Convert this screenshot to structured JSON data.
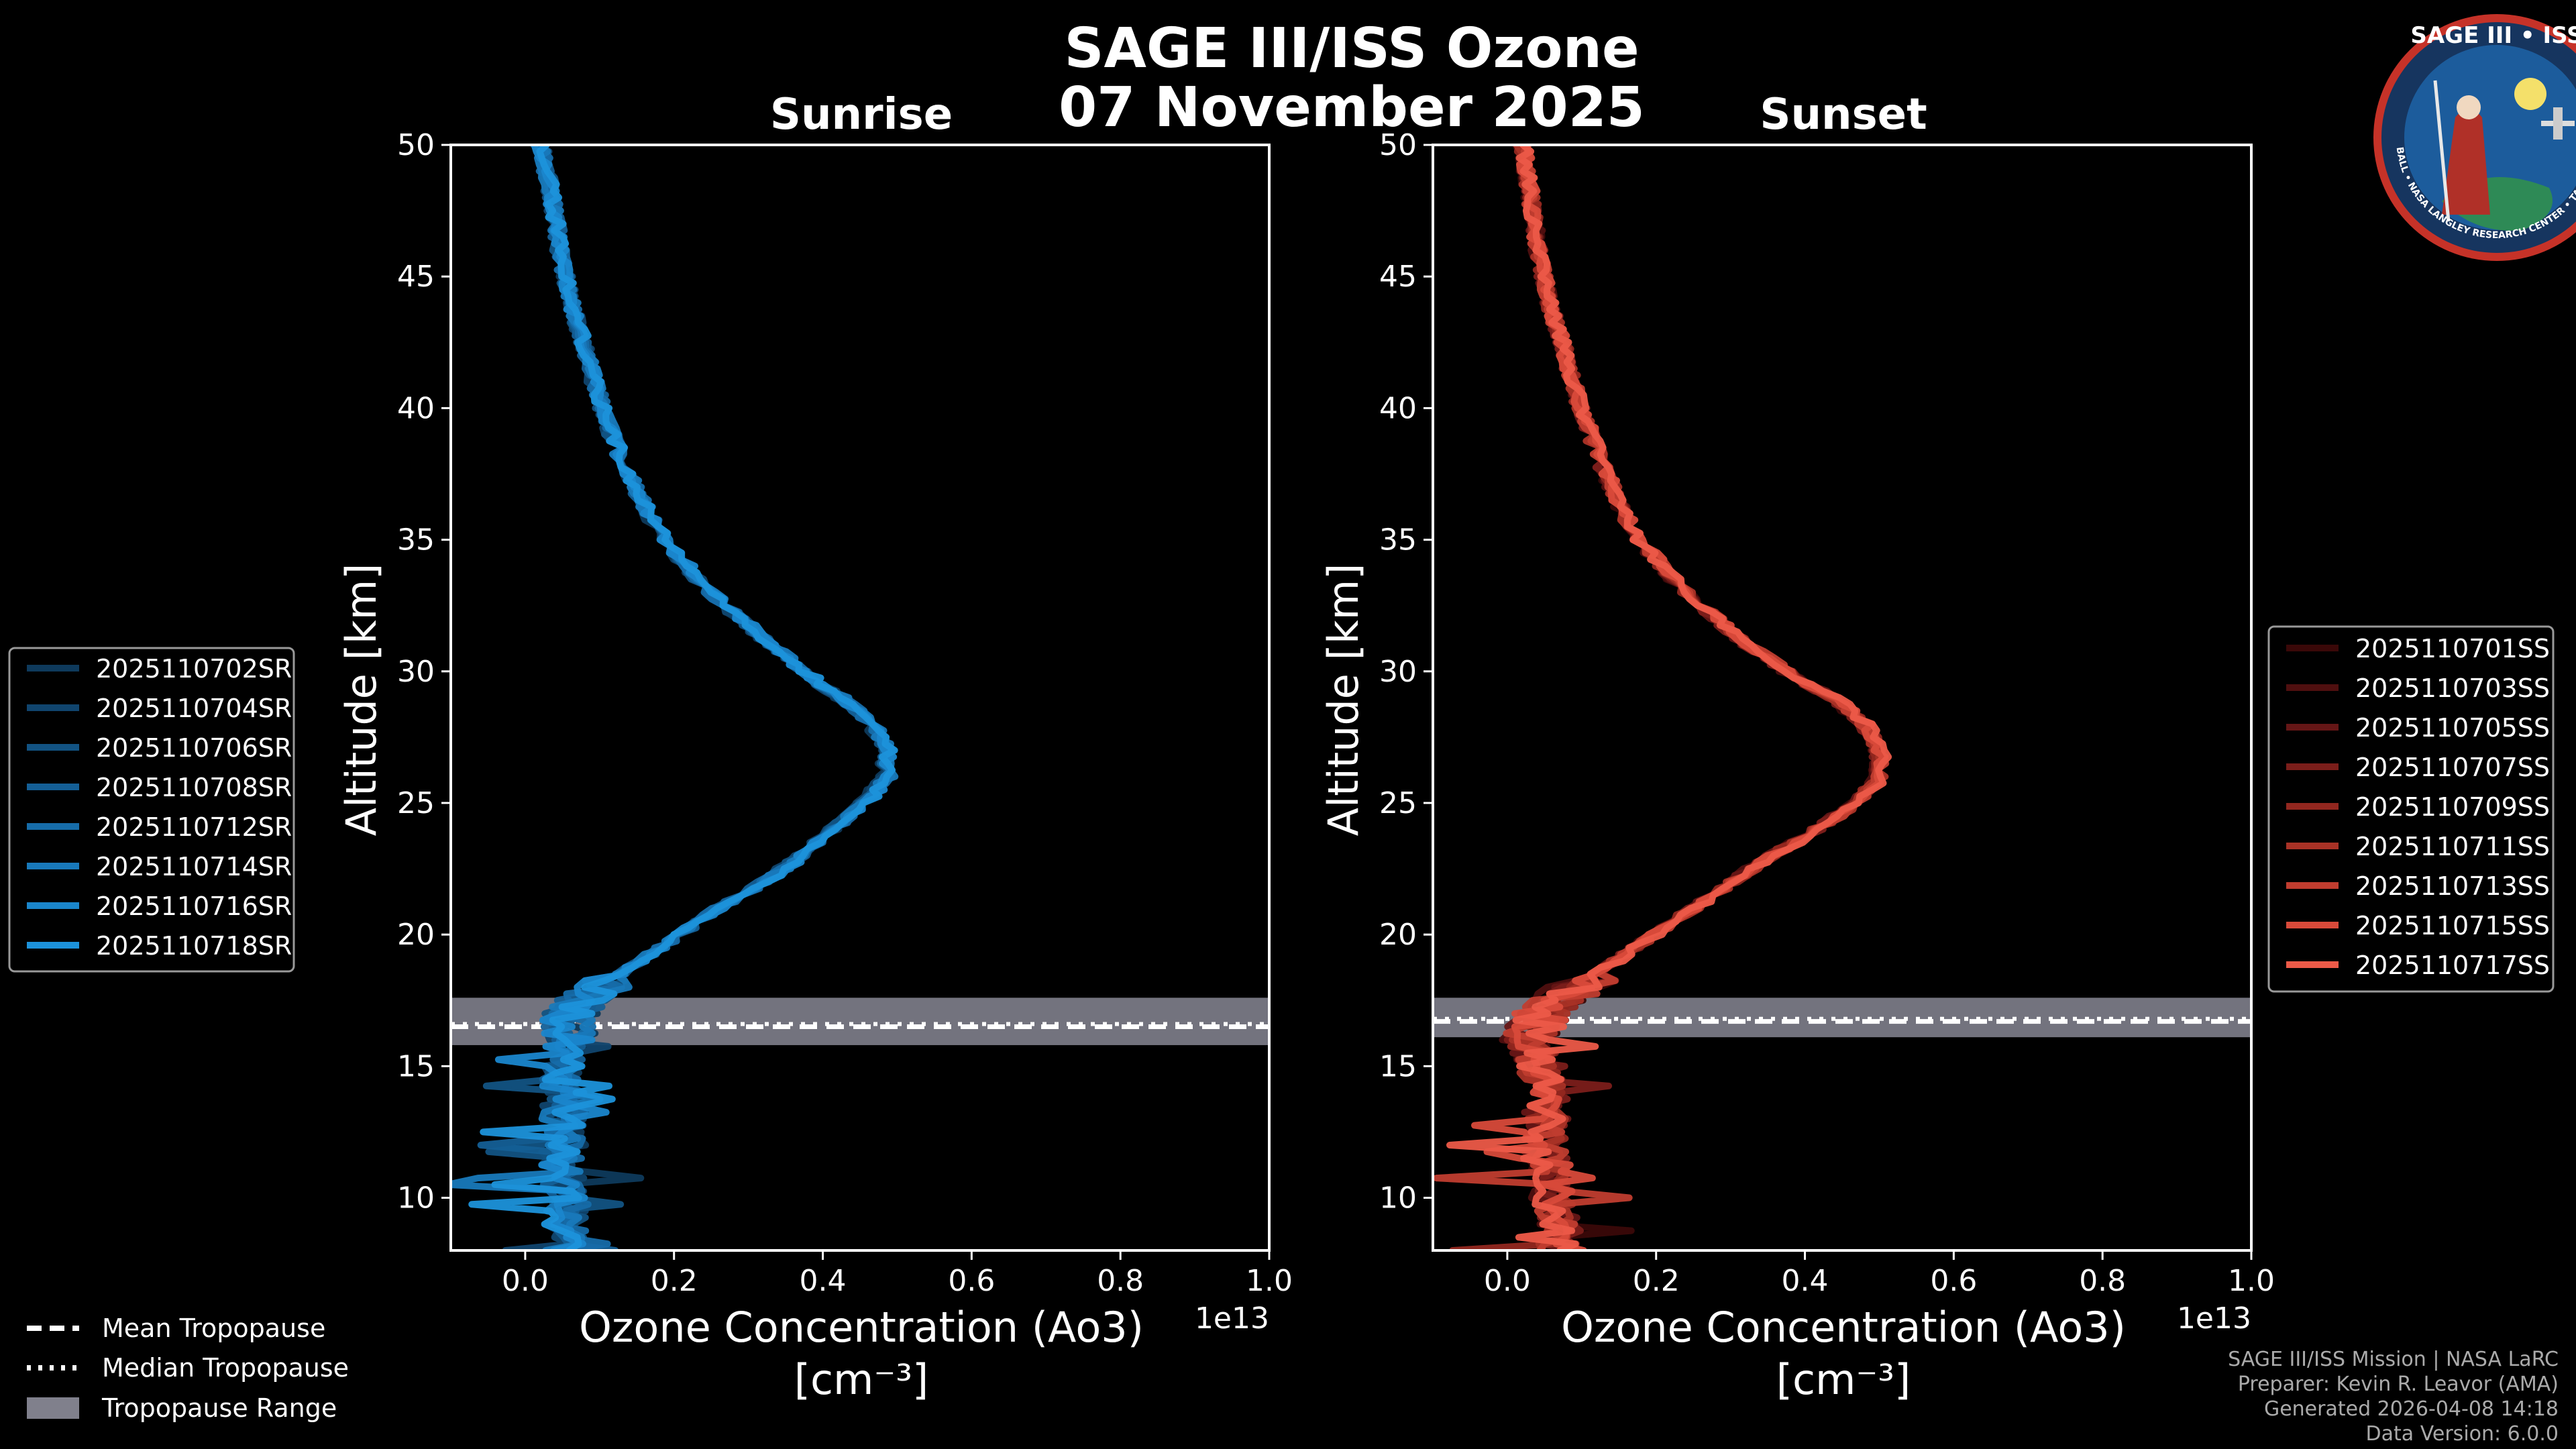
{
  "title": {
    "line1": "SAGE III/ISS Ozone",
    "line2": "07 November 2025"
  },
  "colors": {
    "sunrise_base": "#1a90d0",
    "sunset_base": "#e8574a",
    "tropopause_band": "#80808c",
    "background": "#000000",
    "axis": "#ffffff"
  },
  "chart_data": [
    {
      "type": "line",
      "title": "Sunrise",
      "xlabel": "Ozone Concentration (Ao3)",
      "xunit_label": "[cm⁻³]",
      "ylabel": "Altitude [km]",
      "x_scale_label": "1e13",
      "xlim": [
        -0.1,
        1.0
      ],
      "ylim": [
        8,
        50
      ],
      "x_ticks": [
        0.0,
        0.2,
        0.4,
        0.6,
        0.8,
        1.0
      ],
      "x_tick_labels": [
        "0.0",
        "0.2",
        "0.4",
        "0.6",
        "0.8",
        "1.0"
      ],
      "y_ticks": [
        10,
        15,
        20,
        25,
        30,
        35,
        40,
        45,
        50
      ],
      "y_tick_labels": [
        "10",
        "15",
        "20",
        "25",
        "30",
        "35",
        "40",
        "45",
        "50"
      ],
      "tropopause": {
        "mean_km": 16.5,
        "median_km": 16.6,
        "range_km": [
          15.8,
          17.6
        ]
      },
      "base_profile": {
        "alt_km": [
          8,
          10,
          12,
          14,
          15,
          16,
          17,
          18,
          19,
          20,
          21,
          22,
          23,
          24,
          25,
          26,
          27,
          28,
          29,
          30,
          31,
          32,
          33,
          34,
          35,
          36,
          38,
          40,
          42,
          44,
          46,
          48,
          50
        ],
        "o3": [
          0.05,
          0.05,
          0.05,
          0.05,
          0.05,
          0.05,
          0.06,
          0.1,
          0.15,
          0.2,
          0.25,
          0.31,
          0.36,
          0.4,
          0.44,
          0.47,
          0.47,
          0.45,
          0.41,
          0.36,
          0.32,
          0.28,
          0.24,
          0.21,
          0.18,
          0.16,
          0.125,
          0.1,
          0.08,
          0.06,
          0.045,
          0.035,
          0.02
        ]
      },
      "series": [
        {
          "name": "2025110702SR",
          "color": "#0e3a5c"
        },
        {
          "name": "2025110704SR",
          "color": "#10456e"
        },
        {
          "name": "2025110706SR",
          "color": "#125383"
        },
        {
          "name": "2025110708SR",
          "color": "#145f96"
        },
        {
          "name": "2025110712SR",
          "color": "#166ca9"
        },
        {
          "name": "2025110714SR",
          "color": "#1879bb"
        },
        {
          "name": "2025110716SR",
          "color": "#1a86cc"
        },
        {
          "name": "2025110718SR",
          "color": "#1c92da"
        }
      ]
    },
    {
      "type": "line",
      "title": "Sunset",
      "xlabel": "Ozone Concentration (Ao3)",
      "xunit_label": "[cm⁻³]",
      "ylabel": "Altitude [km]",
      "x_scale_label": "1e13",
      "xlim": [
        -0.1,
        1.0
      ],
      "ylim": [
        8,
        50
      ],
      "x_ticks": [
        0.0,
        0.2,
        0.4,
        0.6,
        0.8,
        1.0
      ],
      "x_tick_labels": [
        "0.0",
        "0.2",
        "0.4",
        "0.6",
        "0.8",
        "1.0"
      ],
      "y_ticks": [
        10,
        15,
        20,
        25,
        30,
        35,
        40,
        45,
        50
      ],
      "y_tick_labels": [
        "10",
        "15",
        "20",
        "25",
        "30",
        "35",
        "40",
        "45",
        "50"
      ],
      "tropopause": {
        "mean_km": 16.7,
        "median_km": 16.8,
        "range_km": [
          16.1,
          17.6
        ]
      },
      "base_profile": {
        "alt_km": [
          8,
          10,
          12,
          14,
          15,
          16,
          17,
          18,
          19,
          20,
          21,
          22,
          23,
          24,
          25,
          26,
          27,
          28,
          29,
          30,
          31,
          32,
          33,
          34,
          35,
          36,
          38,
          40,
          42,
          44,
          46,
          48,
          50
        ],
        "o3": [
          0.07,
          0.06,
          0.05,
          0.05,
          0.04,
          0.03,
          0.04,
          0.09,
          0.14,
          0.19,
          0.24,
          0.29,
          0.34,
          0.4,
          0.45,
          0.48,
          0.48,
          0.46,
          0.42,
          0.36,
          0.31,
          0.27,
          0.23,
          0.2,
          0.17,
          0.15,
          0.12,
          0.095,
          0.075,
          0.055,
          0.04,
          0.03,
          0.02
        ]
      },
      "series": [
        {
          "name": "2025110701SS",
          "color": "#3a0808"
        },
        {
          "name": "2025110703SS",
          "color": "#4f0f0f"
        },
        {
          "name": "2025110705SS",
          "color": "#651616"
        },
        {
          "name": "2025110707SS",
          "color": "#7b1e1a"
        },
        {
          "name": "2025110709SS",
          "color": "#92271f"
        },
        {
          "name": "2025110711SS",
          "color": "#a93226"
        },
        {
          "name": "2025110713SS",
          "color": "#c03d2f"
        },
        {
          "name": "2025110715SS",
          "color": "#d84a3a"
        },
        {
          "name": "2025110717SS",
          "color": "#ec5a48"
        }
      ]
    }
  ],
  "tropopause_legend": [
    {
      "label": "Mean Tropopause",
      "style": "dashed"
    },
    {
      "label": "Median Tropopause",
      "style": "dotted"
    },
    {
      "label": "Tropopause Range",
      "style": "band"
    }
  ],
  "footer": [
    "SAGE III/ISS Mission | NASA LaRC",
    "Preparer: Kevin R. Leavor (AMA)",
    "Generated 2026-04-08 14:18",
    "Data Version: 6.0.0"
  ],
  "logo": {
    "title": "SAGE III • ISS",
    "ring_text": "BALL • NASA LANGLEY RESEARCH CENTER • TAS-I • ESA"
  }
}
